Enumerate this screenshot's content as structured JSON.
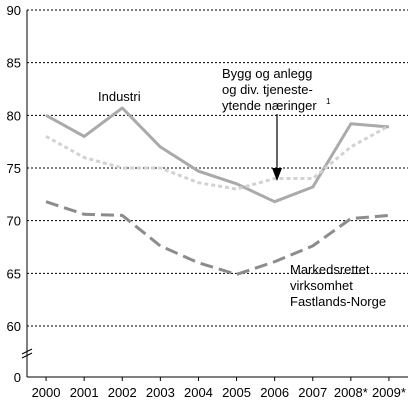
{
  "chart_data": {
    "type": "line",
    "title": "",
    "xlabel": "",
    "ylabel": "",
    "ylim": [
      60,
      90
    ],
    "y_axis_origin_label": "0",
    "y_axis_break": true,
    "yticks": [
      "60",
      "65",
      "70",
      "75",
      "80",
      "85",
      "90"
    ],
    "grid": "horizontal dotted",
    "categories": [
      "2000",
      "2001",
      "2002",
      "2003",
      "2004",
      "2005",
      "2006",
      "2007",
      "2008*",
      "2009*"
    ],
    "series": [
      {
        "key": "industri",
        "values": [
          80.0,
          78.0,
          80.7,
          77.0,
          74.7,
          73.5,
          71.8,
          73.2,
          79.2,
          78.9
        ],
        "color": "#aaaaaa",
        "style": "solid"
      },
      {
        "key": "bygg",
        "values": [
          78.0,
          76.0,
          75.0,
          75.0,
          73.6,
          73.0,
          74.0,
          74.0,
          77.0,
          79.0
        ],
        "color": "#d2d2d2",
        "style": "dotted"
      },
      {
        "key": "markedsrettet",
        "values": [
          71.8,
          70.6,
          70.5,
          67.6,
          66.0,
          64.9,
          66.1,
          67.6,
          70.2,
          70.5
        ],
        "color": "#8c8c8c",
        "style": "dashed"
      }
    ],
    "annotations": {
      "industri": [
        "Industri"
      ],
      "bygg": [
        "Bygg og anlegg",
        "og div. tjeneste-",
        "ytende næringer"
      ],
      "bygg_sup": "1",
      "markedsrettet": [
        "Markedsrettet",
        "virksomhet",
        "Fastlands-Norge"
      ]
    }
  }
}
